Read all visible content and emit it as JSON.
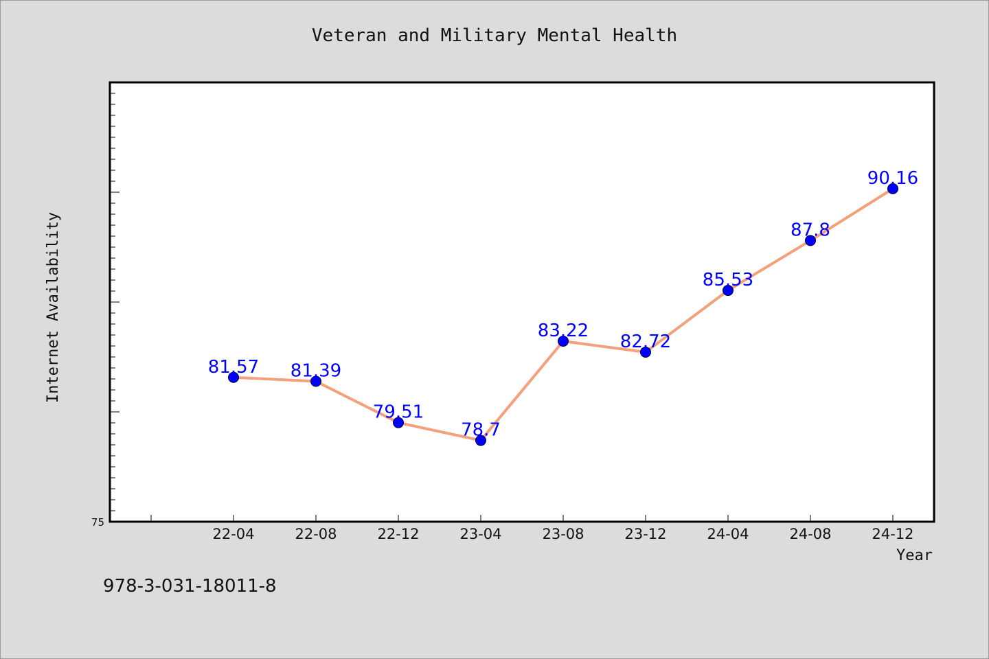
{
  "footer_text": "978-3-031-18011-8",
  "colors": {
    "background": "#dcdcdc",
    "plot_background": "#ffffff",
    "line": "#f4a07a",
    "marker": "#0000ff",
    "data_label": "#0000ff"
  },
  "chart_data": {
    "type": "line",
    "title": "Veteran and Military Mental Health",
    "xlabel": "Year",
    "ylabel": "Internet Availability",
    "categories": [
      "22-04",
      "22-08",
      "22-12",
      "23-04",
      "23-08",
      "23-12",
      "24-04",
      "24-08",
      "24-12"
    ],
    "series": [
      {
        "values": [
          81.57,
          81.39,
          79.51,
          78.7,
          83.22,
          82.72,
          85.53,
          87.8,
          90.16
        ],
        "labels": [
          "81.57",
          "81.39",
          "79.51",
          "78.7",
          "83.22",
          "82.72",
          "85.53",
          "87.8",
          "90.16"
        ]
      }
    ],
    "ylim": [
      75,
      95
    ],
    "yticks_labeled": [
      "75"
    ],
    "grid": false,
    "legend": "none"
  }
}
